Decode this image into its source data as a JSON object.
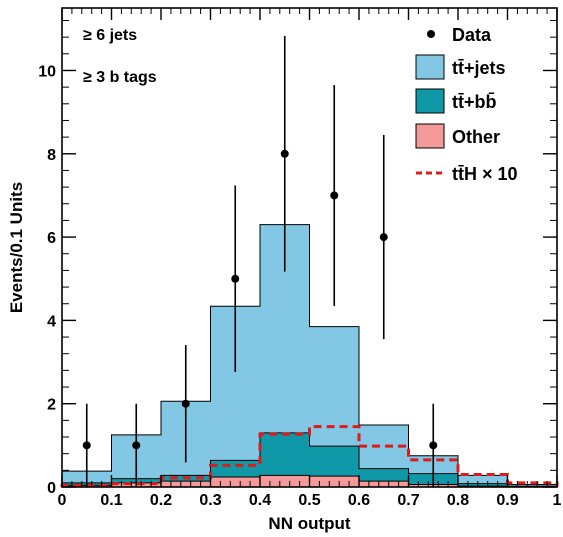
{
  "chart_data": {
    "type": "bar",
    "stacked": true,
    "xlabel": "NN output",
    "ylabel": "Events/0.1 Units",
    "xlim": [
      0,
      1
    ],
    "ylim": [
      0,
      11.5
    ],
    "bin_edges": [
      0,
      0.1,
      0.2,
      0.3,
      0.4,
      0.5,
      0.6,
      0.7,
      0.8,
      0.9,
      1.0
    ],
    "x_ticks": [
      "0",
      "0.1",
      "0.2",
      "0.3",
      "0.4",
      "0.5",
      "0.6",
      "0.7",
      "0.8",
      "0.9",
      "1"
    ],
    "y_ticks": [
      "0",
      "2",
      "4",
      "6",
      "8",
      "10"
    ],
    "annotations": [
      "≥ 6 jets",
      "≥ 3 b tags"
    ],
    "legend_position": "top-right",
    "series": [
      {
        "name": "Other",
        "kind": "stacked-fill",
        "color": "#f59a9a",
        "values": [
          0.04,
          0.1,
          0.14,
          0.24,
          0.28,
          0.26,
          0.14,
          0.06,
          0.02,
          0.0
        ]
      },
      {
        "name": "tt̄+bb̄",
        "kind": "stacked-fill",
        "color": "#0f99a8",
        "values": [
          0.06,
          0.1,
          0.14,
          0.4,
          1.02,
          0.72,
          0.3,
          0.26,
          0.06,
          0.02
        ]
      },
      {
        "name": "tt̄+jets",
        "kind": "stacked-fill",
        "color": "#82c8e5",
        "values": [
          0.28,
          1.05,
          1.78,
          3.7,
          5.0,
          2.87,
          1.05,
          0.43,
          0.2,
          0.04
        ]
      },
      {
        "name": "tt̄H × 10",
        "kind": "dashed-line",
        "color": "#e01a1a",
        "values": [
          0.04,
          0.08,
          0.22,
          0.52,
          1.27,
          1.45,
          0.98,
          0.65,
          0.3,
          0.1
        ]
      },
      {
        "name": "Data",
        "kind": "points",
        "color": "#000000",
        "x": [
          0.05,
          0.15,
          0.25,
          0.35,
          0.45,
          0.55,
          0.65,
          0.75
        ],
        "values": [
          1,
          1,
          2,
          5,
          8,
          7,
          6,
          1
        ],
        "err_low": [
          1.0,
          1.0,
          1.41,
          2.24,
          2.83,
          2.65,
          2.45,
          1.0
        ],
        "err_high": [
          1.0,
          1.0,
          1.41,
          2.24,
          2.83,
          2.65,
          2.45,
          1.0
        ]
      }
    ],
    "legend": [
      "Data",
      "tt̄+jets",
      "tt̄+bb̄",
      "Other",
      "tt̄H × 10"
    ]
  }
}
